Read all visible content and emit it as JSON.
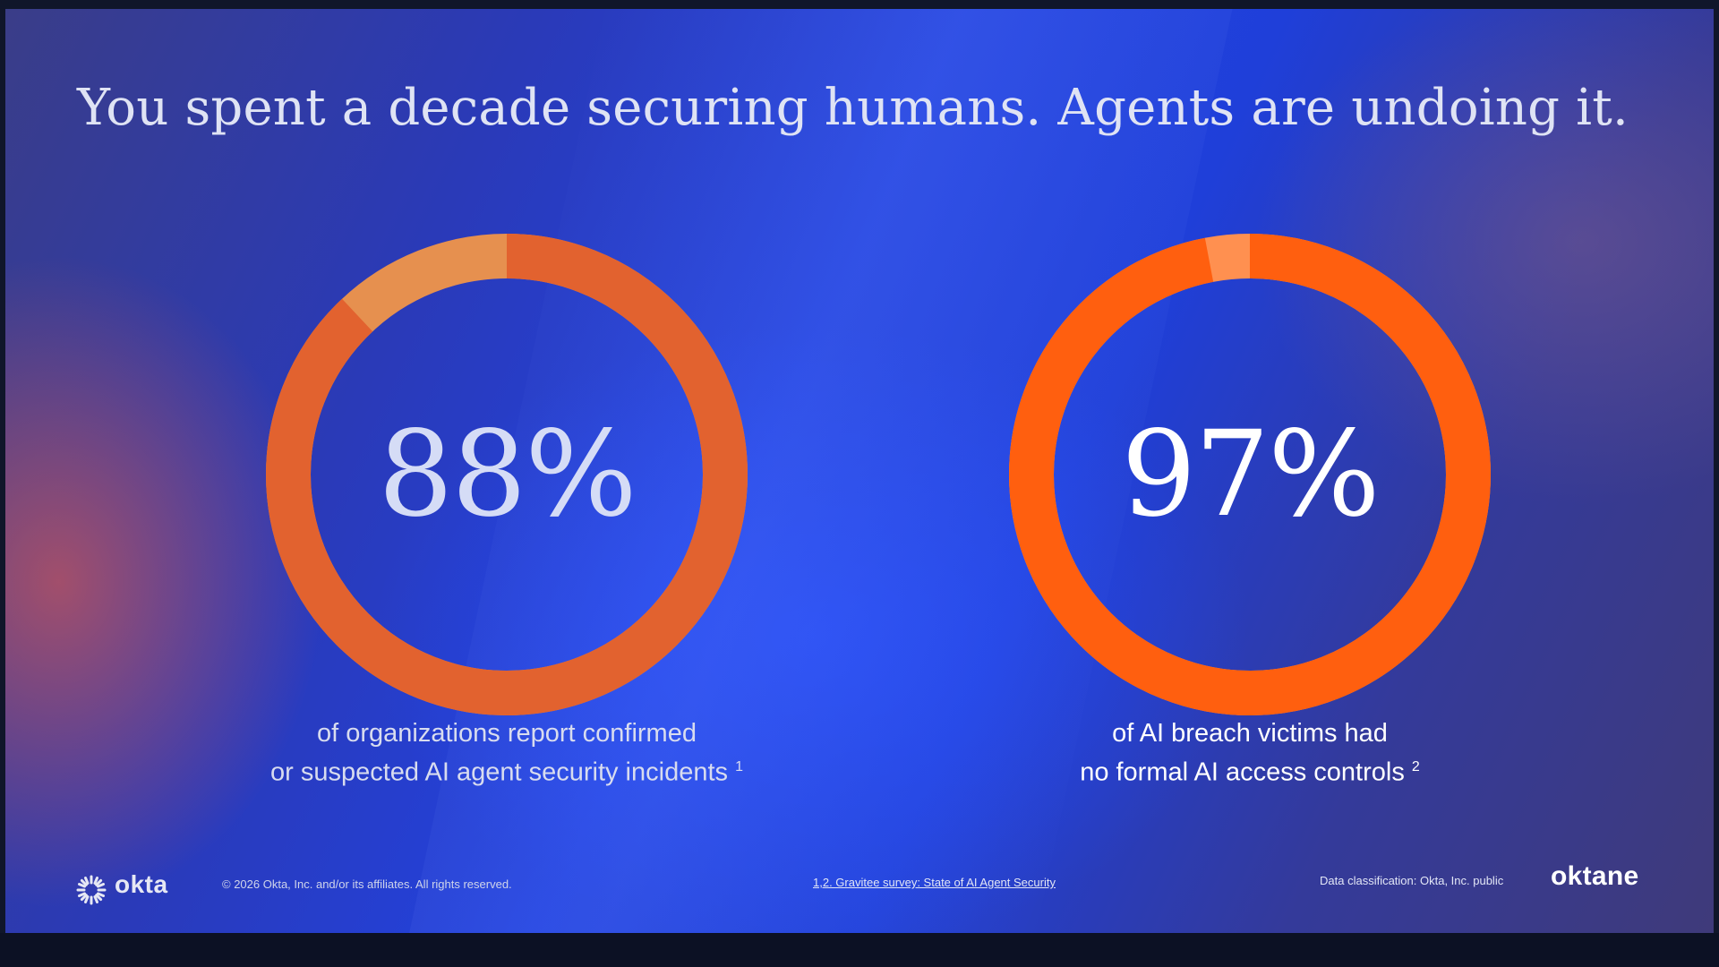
{
  "slide": {
    "title": "You spent a decade securing humans. Agents are undoing it.",
    "colors": {
      "ring_main_left": "#e2622f",
      "ring_rest_left": "#e6904f",
      "ring_main_right": "#ff5f0f",
      "ring_rest_right": "#ff9050"
    }
  },
  "stats": [
    {
      "percent": 88,
      "value_text": "88%",
      "caption_line1": "of organizations report confirmed",
      "caption_line2": "or suspected AI agent security incidents",
      "footnote": "1"
    },
    {
      "percent": 97,
      "value_text": "97%",
      "caption_line1": "of AI breach victims had",
      "caption_line2": "no formal AI access controls",
      "footnote": "2"
    }
  ],
  "footer": {
    "logo_icon": "okta-sunburst-icon",
    "logo_text": "okta",
    "copyright": "© 2026 Okta, Inc. and/or its affiliates. All rights reserved.",
    "source": "1,2. Gravitee survey: State of AI Agent Security",
    "classification": "Data classification: Okta, Inc. public",
    "brand": "oktane"
  }
}
